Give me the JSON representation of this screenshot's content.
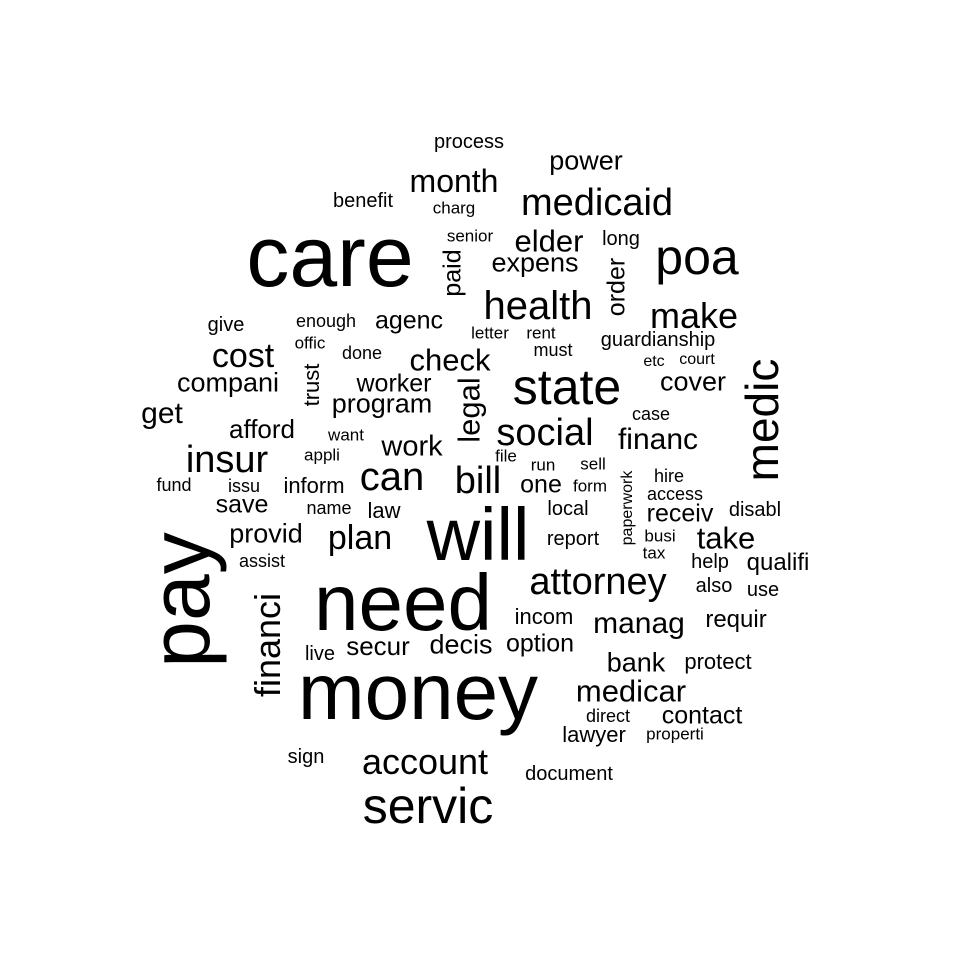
{
  "word_cloud": {
    "words": [
      {
        "text": "care"
      },
      {
        "text": "pay"
      },
      {
        "text": "money"
      },
      {
        "text": "need"
      },
      {
        "text": "will"
      },
      {
        "text": "state"
      },
      {
        "text": "servic"
      },
      {
        "text": "poa"
      },
      {
        "text": "medic"
      },
      {
        "text": "health"
      },
      {
        "text": "medicaid"
      },
      {
        "text": "attorney"
      },
      {
        "text": "social"
      },
      {
        "text": "account"
      },
      {
        "text": "financi"
      },
      {
        "text": "insur"
      },
      {
        "text": "can"
      },
      {
        "text": "make"
      },
      {
        "text": "bill"
      },
      {
        "text": "plan"
      },
      {
        "text": "cost"
      },
      {
        "text": "month"
      },
      {
        "text": "elder"
      },
      {
        "text": "check"
      },
      {
        "text": "medicar"
      },
      {
        "text": "manag"
      },
      {
        "text": "financ"
      },
      {
        "text": "take"
      },
      {
        "text": "legal"
      },
      {
        "text": "work"
      },
      {
        "text": "program"
      },
      {
        "text": "power"
      },
      {
        "text": "expens"
      },
      {
        "text": "get"
      },
      {
        "text": "compani"
      },
      {
        "text": "cover"
      },
      {
        "text": "bank"
      },
      {
        "text": "decis"
      },
      {
        "text": "secur"
      },
      {
        "text": "option"
      },
      {
        "text": "contact"
      },
      {
        "text": "afford"
      },
      {
        "text": "provid"
      },
      {
        "text": "worker"
      },
      {
        "text": "agenc"
      },
      {
        "text": "paid"
      },
      {
        "text": "order"
      },
      {
        "text": "save"
      },
      {
        "text": "one"
      },
      {
        "text": "requir"
      },
      {
        "text": "receiv"
      },
      {
        "text": "qualifi"
      },
      {
        "text": "inform"
      },
      {
        "text": "lawyer"
      },
      {
        "text": "protect"
      },
      {
        "text": "law"
      },
      {
        "text": "incom"
      },
      {
        "text": "process"
      },
      {
        "text": "benefit"
      },
      {
        "text": "give"
      },
      {
        "text": "long"
      },
      {
        "text": "guardianship"
      },
      {
        "text": "trust"
      },
      {
        "text": "document"
      },
      {
        "text": "disabl"
      },
      {
        "text": "sign"
      },
      {
        "text": "live"
      },
      {
        "text": "report"
      },
      {
        "text": "local"
      },
      {
        "text": "help"
      },
      {
        "text": "also"
      },
      {
        "text": "use"
      },
      {
        "text": "paperwork"
      },
      {
        "text": "direct"
      },
      {
        "text": "access"
      },
      {
        "text": "hire"
      },
      {
        "text": "enough"
      },
      {
        "text": "done"
      },
      {
        "text": "must"
      },
      {
        "text": "case"
      },
      {
        "text": "fund"
      },
      {
        "text": "issu"
      },
      {
        "text": "name"
      },
      {
        "text": "assist"
      },
      {
        "text": "senior"
      },
      {
        "text": "charg"
      },
      {
        "text": "letter"
      },
      {
        "text": "rent"
      },
      {
        "text": "offic"
      },
      {
        "text": "court"
      },
      {
        "text": "etc"
      },
      {
        "text": "want"
      },
      {
        "text": "appli"
      },
      {
        "text": "file"
      },
      {
        "text": "run"
      },
      {
        "text": "sell"
      },
      {
        "text": "form"
      },
      {
        "text": "busi"
      },
      {
        "text": "tax"
      },
      {
        "text": "properti"
      }
    ]
  }
}
